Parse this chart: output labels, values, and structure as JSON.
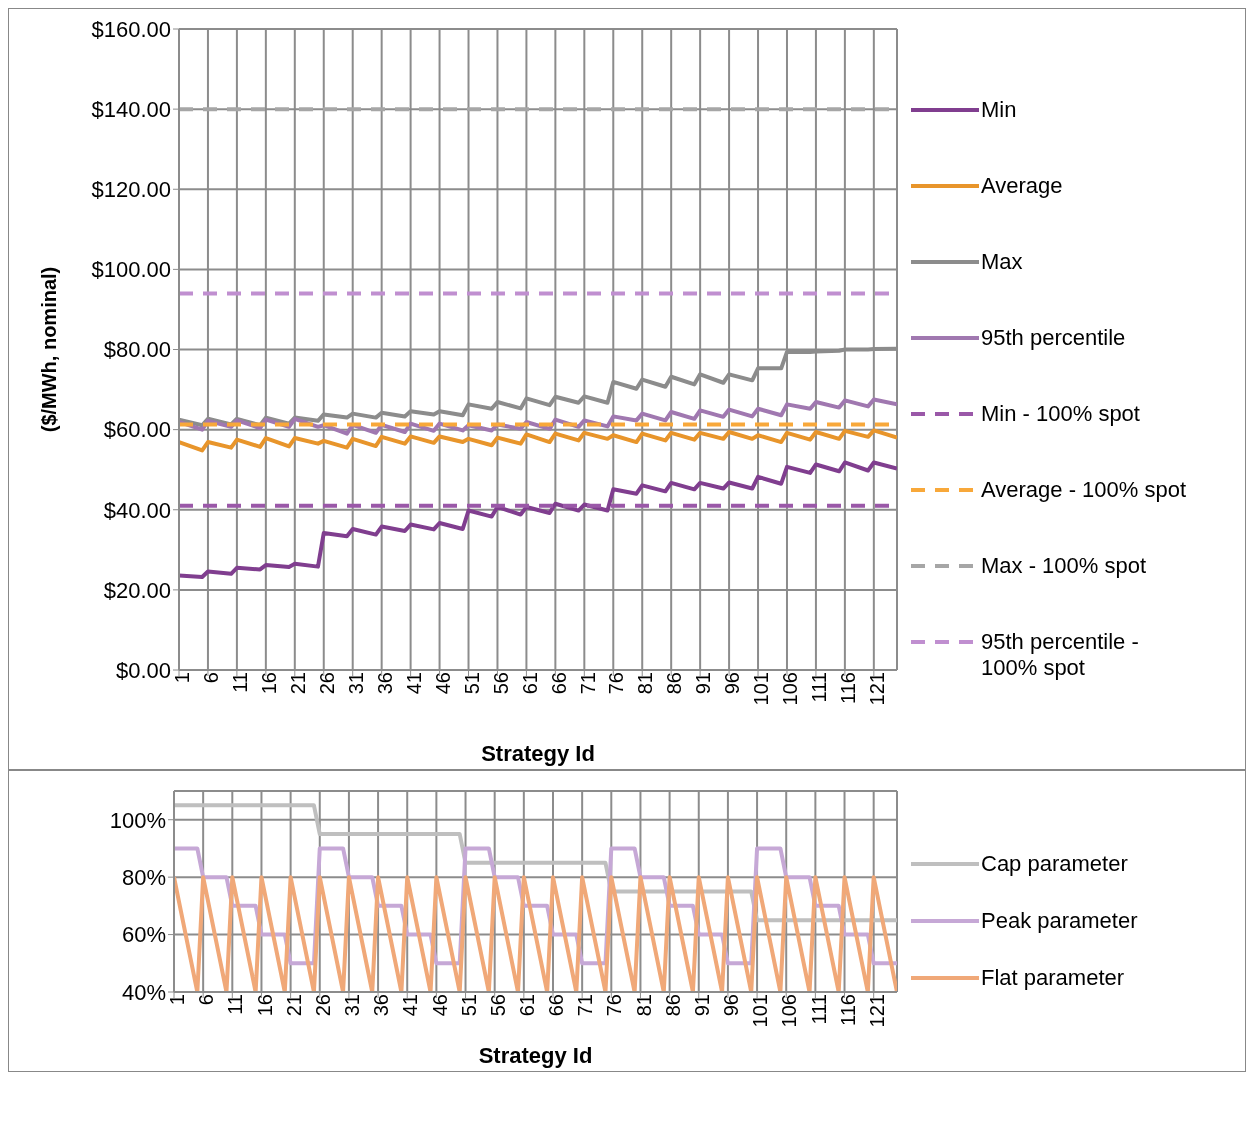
{
  "chart_data": [
    {
      "type": "line",
      "xlabel": "Strategy Id",
      "ylabel": "($/MWh, nominal)",
      "x": [
        1,
        5,
        6,
        10,
        11,
        15,
        16,
        20,
        21,
        25,
        26,
        30,
        31,
        35,
        36,
        40,
        41,
        45,
        46,
        50,
        51,
        55,
        56,
        60,
        61,
        65,
        66,
        70,
        71,
        75,
        76,
        80,
        81,
        85,
        86,
        90,
        91,
        95,
        96,
        100,
        101,
        105,
        106,
        110,
        111,
        115,
        116,
        120,
        121,
        125
      ],
      "xlim": [
        1,
        125
      ],
      "xticks": [
        1,
        6,
        11,
        16,
        21,
        26,
        31,
        36,
        41,
        46,
        51,
        56,
        61,
        66,
        71,
        76,
        81,
        86,
        91,
        96,
        101,
        106,
        111,
        116,
        121
      ],
      "ylim": [
        0,
        160
      ],
      "yticks": [
        {
          "value": 0,
          "label": "$0.00"
        },
        {
          "value": 20,
          "label": "$20.00"
        },
        {
          "value": 40,
          "label": "$40.00"
        },
        {
          "value": 60,
          "label": "$60.00"
        },
        {
          "value": 80,
          "label": "$80.00"
        },
        {
          "value": 100,
          "label": "$100.00"
        },
        {
          "value": 120,
          "label": "$120.00"
        },
        {
          "value": 140,
          "label": "$140.00"
        },
        {
          "value": 160,
          "label": "$160.00"
        }
      ],
      "grid": true,
      "legend": "right",
      "marker": "none",
      "series": [
        {
          "name": "Min",
          "color": "#803e8f",
          "line_style": "solid",
          "values": [
            23.6,
            23.2,
            24.6,
            24,
            25.5,
            25.1,
            26.2,
            25.7,
            26.5,
            25.8,
            34.2,
            33.4,
            35.2,
            33.8,
            35.8,
            34.7,
            36.3,
            35.1,
            36.7,
            35.2,
            39.8,
            38.3,
            40.7,
            38.8,
            40.7,
            39.2,
            41.5,
            39.8,
            41.3,
            39.8,
            45.1,
            44,
            46.1,
            44.6,
            46.7,
            45.1,
            46.7,
            45.3,
            46.8,
            45.3,
            48.2,
            46.5,
            50.7,
            49.2,
            51.3,
            49.6,
            51.8,
            49.8,
            51.8,
            50.3
          ]
        },
        {
          "name": "Average",
          "color": "#e8952b",
          "line_style": "solid",
          "values": [
            56.9,
            54.8,
            56.9,
            55.5,
            57.5,
            55.7,
            57.9,
            55.8,
            57.9,
            56.5,
            57.2,
            55.5,
            57.7,
            55.9,
            58.2,
            56.5,
            58.3,
            56.7,
            58.3,
            56.9,
            57.7,
            56.1,
            58,
            56.5,
            58.8,
            56.9,
            59,
            57.3,
            59.2,
            57.7,
            58.6,
            56.9,
            59,
            57.3,
            59.2,
            57.5,
            59.2,
            57.7,
            59.4,
            57.7,
            58.6,
            56.9,
            59.2,
            57.5,
            59.4,
            57.7,
            59.7,
            58.2,
            59.8,
            58
          ]
        },
        {
          "name": "Max",
          "color": "#8c8c8c",
          "line_style": "solid",
          "values": [
            62.5,
            61.1,
            62.7,
            61.3,
            62.7,
            61.1,
            63,
            61.5,
            63,
            62.2,
            63.8,
            63,
            64,
            63,
            64.2,
            63.3,
            64.6,
            63.8,
            64.6,
            63.6,
            66.3,
            65.2,
            66.9,
            65.3,
            67.8,
            66.1,
            68.2,
            66.7,
            68.3,
            66.7,
            71.9,
            70.2,
            72.5,
            70.7,
            73.2,
            71.3,
            73.8,
            71.7,
            73.8,
            72.3,
            75.3,
            75.3,
            79.4,
            79.4,
            79.5,
            79.7,
            80,
            80,
            80.1,
            80.2
          ]
        },
        {
          "name": "95th percentile",
          "color": "#a078b0",
          "line_style": "solid",
          "values": [
            61.9,
            60,
            62.2,
            60.7,
            62.3,
            60.4,
            62.5,
            60.7,
            62.7,
            60.7,
            61.1,
            59,
            61.2,
            59.2,
            61.2,
            59.4,
            61.5,
            59.7,
            61.5,
            59.8,
            61.1,
            59.8,
            61.3,
            60.2,
            61.9,
            60.2,
            62.5,
            60.7,
            62.3,
            60.8,
            63.3,
            62.3,
            64,
            62.3,
            64.4,
            62.7,
            64.8,
            63.2,
            65,
            63.3,
            65.2,
            63.6,
            66.3,
            65.2,
            66.9,
            65.5,
            67.3,
            65.8,
            67.5,
            66.3
          ]
        },
        {
          "name": "Min - 100% spot",
          "color": "#9a58a8",
          "line_style": "dashed",
          "x": [
            1,
            125
          ],
          "values": [
            41,
            41
          ]
        },
        {
          "name": "Average - 100% spot",
          "color": "#f8a83a",
          "line_style": "dashed",
          "x": [
            1,
            125
          ],
          "values": [
            61.3,
            61.3
          ]
        },
        {
          "name": "Max - 100% spot",
          "color": "#a6a6a6",
          "line_style": "dashed",
          "x": [
            1,
            125
          ],
          "values": [
            140,
            140
          ]
        },
        {
          "name": "95th percentile - 100% spot",
          "color": "#c08fd0",
          "line_style": "dashed",
          "x": [
            1,
            125
          ],
          "values": [
            94,
            94
          ]
        }
      ]
    },
    {
      "type": "line",
      "xlabel": "Strategy Id",
      "x": [
        1,
        5,
        6,
        10,
        11,
        15,
        16,
        20,
        21,
        25,
        26,
        30,
        31,
        35,
        36,
        40,
        41,
        45,
        46,
        50,
        51,
        55,
        56,
        60,
        61,
        65,
        66,
        70,
        71,
        75,
        76,
        80,
        81,
        85,
        86,
        90,
        91,
        95,
        96,
        100,
        101,
        105,
        106,
        110,
        111,
        115,
        116,
        120,
        121,
        125
      ],
      "xlim": [
        1,
        125
      ],
      "xticks": [
        1,
        6,
        11,
        16,
        21,
        26,
        31,
        36,
        41,
        46,
        51,
        56,
        61,
        66,
        71,
        76,
        81,
        86,
        91,
        96,
        101,
        106,
        111,
        116,
        121
      ],
      "ylim": [
        40,
        110
      ],
      "yticks": [
        {
          "value": 40,
          "label": "40%"
        },
        {
          "value": 60,
          "label": "60%"
        },
        {
          "value": 80,
          "label": "80%"
        },
        {
          "value": 100,
          "label": "100%"
        }
      ],
      "grid": true,
      "legend": "right",
      "marker": "none",
      "series": [
        {
          "name": "Cap parameter",
          "color": "#bfbfbf",
          "x": [
            1,
            25,
            26,
            50,
            51,
            75,
            76,
            100,
            101,
            125
          ],
          "values": [
            105,
            105,
            95,
            95,
            85,
            85,
            75,
            75,
            65,
            65
          ]
        },
        {
          "name": "Peak parameter",
          "color": "#c6a8d6",
          "values": [
            90,
            90,
            80,
            80,
            70,
            70,
            60,
            60,
            50,
            50,
            90,
            90,
            80,
            80,
            70,
            70,
            60,
            60,
            50,
            50,
            90,
            90,
            80,
            80,
            70,
            70,
            60,
            60,
            50,
            50,
            90,
            90,
            80,
            80,
            70,
            70,
            60,
            60,
            50,
            50,
            90,
            90,
            80,
            80,
            70,
            70,
            60,
            60,
            50,
            50
          ]
        },
        {
          "name": "Flat parameter",
          "color": "#f0a878",
          "values": [
            80,
            40,
            80,
            40,
            80,
            40,
            80,
            40,
            80,
            40,
            80,
            40,
            80,
            40,
            80,
            40,
            80,
            40,
            80,
            40,
            80,
            40,
            80,
            40,
            80,
            40,
            80,
            40,
            80,
            40,
            80,
            40,
            80,
            40,
            80,
            40,
            80,
            40,
            80,
            40,
            80,
            40,
            80,
            40,
            80,
            40,
            80,
            40,
            80,
            40
          ]
        }
      ]
    }
  ]
}
